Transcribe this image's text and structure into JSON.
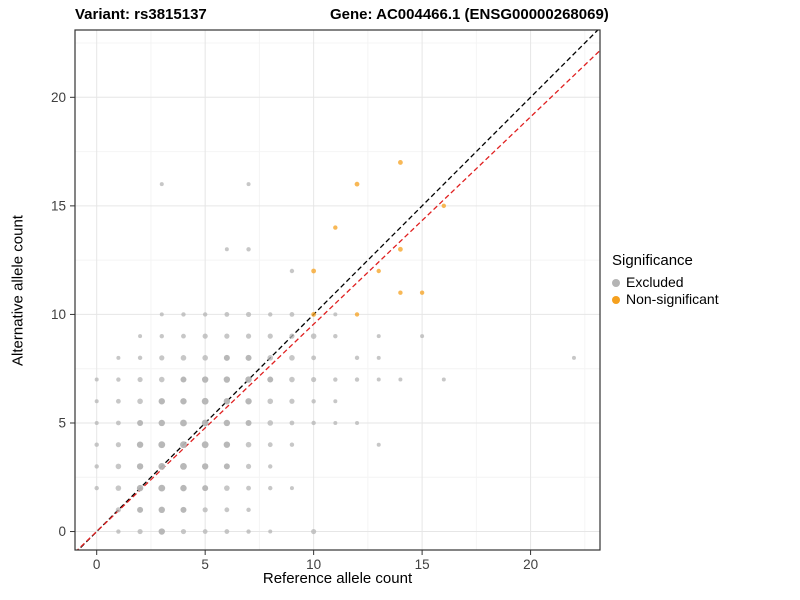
{
  "header": {
    "variant_title": "Variant: rs3815137",
    "gene_title": "Gene: AC004466.1 (ENSG00000268069)"
  },
  "legend": {
    "title": "Significance",
    "items": [
      {
        "label": "Excluded",
        "color": "#b4b4b4"
      },
      {
        "label": "Non-significant",
        "color": "#f5a01e"
      }
    ]
  },
  "chart_data": {
    "type": "scatter",
    "xlabel": "Reference allele count",
    "ylabel": "Alternative allele count",
    "xlim": [
      -1.0,
      23.2
    ],
    "ylim": [
      -0.85,
      23.1
    ],
    "xticks": [
      0,
      5,
      10,
      15,
      20
    ],
    "yticks": [
      0,
      5,
      10,
      15,
      20
    ],
    "grid": "major+minor",
    "grid_major_color": "#e6e6e6",
    "grid_minor_color": "#f4f4f4",
    "panel_border_color": "#333333",
    "lines": [
      {
        "name": "identity",
        "slope": 1.0,
        "intercept": 0,
        "color": "#000000",
        "dash": "5 3"
      },
      {
        "name": "fit",
        "slope": 0.955,
        "intercept": 0,
        "color": "#e02020",
        "dash": "5 3"
      }
    ],
    "series": [
      {
        "name": "Excluded",
        "color": "#b4b4b4",
        "points": [
          [
            1,
            0,
            2.2
          ],
          [
            2,
            0,
            2.6
          ],
          [
            3,
            0,
            3.2
          ],
          [
            4,
            0,
            2.6
          ],
          [
            5,
            0,
            2.4
          ],
          [
            6,
            0,
            2.4
          ],
          [
            7,
            0,
            2.2
          ],
          [
            8,
            0,
            2.0
          ],
          [
            10,
            0,
            2.6
          ],
          [
            1,
            1,
            2.6
          ],
          [
            2,
            1,
            3.0
          ],
          [
            3,
            1,
            3.2
          ],
          [
            4,
            1,
            3.0
          ],
          [
            5,
            1,
            2.6
          ],
          [
            6,
            1,
            2.4
          ],
          [
            7,
            1,
            2.2
          ],
          [
            0,
            2,
            2.2
          ],
          [
            1,
            2,
            2.8
          ],
          [
            2,
            2,
            3.2
          ],
          [
            3,
            2,
            3.4
          ],
          [
            4,
            2,
            3.2
          ],
          [
            5,
            2,
            3.0
          ],
          [
            6,
            2,
            2.8
          ],
          [
            7,
            2,
            2.4
          ],
          [
            8,
            2,
            2.2
          ],
          [
            9,
            2,
            2.0
          ],
          [
            0,
            3,
            2.2
          ],
          [
            1,
            3,
            2.8
          ],
          [
            2,
            3,
            3.2
          ],
          [
            3,
            3,
            3.4
          ],
          [
            4,
            3,
            3.4
          ],
          [
            5,
            3,
            3.2
          ],
          [
            6,
            3,
            3.0
          ],
          [
            7,
            3,
            2.6
          ],
          [
            8,
            3,
            2.2
          ],
          [
            0,
            4,
            2.2
          ],
          [
            1,
            4,
            2.6
          ],
          [
            2,
            4,
            3.2
          ],
          [
            3,
            4,
            3.4
          ],
          [
            4,
            4,
            3.4
          ],
          [
            5,
            4,
            3.4
          ],
          [
            6,
            4,
            3.2
          ],
          [
            7,
            4,
            2.8
          ],
          [
            8,
            4,
            2.4
          ],
          [
            9,
            4,
            2.2
          ],
          [
            13,
            4,
            2.0
          ],
          [
            0,
            5,
            2.0
          ],
          [
            1,
            5,
            2.4
          ],
          [
            2,
            5,
            3.0
          ],
          [
            3,
            5,
            3.2
          ],
          [
            4,
            5,
            3.4
          ],
          [
            5,
            5,
            3.4
          ],
          [
            6,
            5,
            3.2
          ],
          [
            7,
            5,
            3.0
          ],
          [
            8,
            5,
            2.8
          ],
          [
            9,
            5,
            2.4
          ],
          [
            10,
            5,
            2.2
          ],
          [
            11,
            5,
            2.0
          ],
          [
            12,
            5,
            2.0
          ],
          [
            0,
            6,
            2.0
          ],
          [
            1,
            6,
            2.4
          ],
          [
            2,
            6,
            2.8
          ],
          [
            3,
            6,
            3.2
          ],
          [
            4,
            6,
            3.2
          ],
          [
            5,
            6,
            3.4
          ],
          [
            6,
            6,
            3.2
          ],
          [
            7,
            6,
            3.2
          ],
          [
            8,
            6,
            2.8
          ],
          [
            9,
            6,
            2.6
          ],
          [
            10,
            6,
            2.2
          ],
          [
            11,
            6,
            2.0
          ],
          [
            0,
            7,
            2.0
          ],
          [
            1,
            7,
            2.2
          ],
          [
            2,
            7,
            2.6
          ],
          [
            3,
            7,
            2.8
          ],
          [
            4,
            7,
            3.0
          ],
          [
            5,
            7,
            3.2
          ],
          [
            6,
            7,
            3.2
          ],
          [
            7,
            7,
            3.2
          ],
          [
            8,
            7,
            3.0
          ],
          [
            9,
            7,
            2.8
          ],
          [
            10,
            7,
            2.6
          ],
          [
            11,
            7,
            2.2
          ],
          [
            12,
            7,
            2.2
          ],
          [
            13,
            7,
            2.0
          ],
          [
            14,
            7,
            2.0
          ],
          [
            16,
            7,
            2.0
          ],
          [
            1,
            8,
            2.0
          ],
          [
            2,
            8,
            2.2
          ],
          [
            3,
            8,
            2.6
          ],
          [
            4,
            8,
            2.8
          ],
          [
            5,
            8,
            2.8
          ],
          [
            6,
            8,
            3.0
          ],
          [
            7,
            8,
            3.0
          ],
          [
            8,
            8,
            2.8
          ],
          [
            9,
            8,
            2.8
          ],
          [
            10,
            8,
            2.4
          ],
          [
            12,
            8,
            2.2
          ],
          [
            13,
            8,
            2.0
          ],
          [
            22,
            8,
            2.0
          ],
          [
            2,
            9,
            2.0
          ],
          [
            3,
            9,
            2.2
          ],
          [
            4,
            9,
            2.4
          ],
          [
            5,
            9,
            2.6
          ],
          [
            6,
            9,
            2.6
          ],
          [
            7,
            9,
            2.6
          ],
          [
            8,
            9,
            2.6
          ],
          [
            9,
            9,
            2.6
          ],
          [
            10,
            9,
            2.8
          ],
          [
            11,
            9,
            2.2
          ],
          [
            13,
            9,
            2.0
          ],
          [
            15,
            9,
            2.0
          ],
          [
            3,
            10,
            2.0
          ],
          [
            4,
            10,
            2.2
          ],
          [
            5,
            10,
            2.2
          ],
          [
            6,
            10,
            2.4
          ],
          [
            7,
            10,
            2.6
          ],
          [
            8,
            10,
            2.2
          ],
          [
            9,
            10,
            2.4
          ],
          [
            11,
            10,
            2.0
          ],
          [
            9,
            12,
            2.2
          ],
          [
            6,
            13,
            2.0
          ],
          [
            7,
            13,
            2.2
          ],
          [
            3,
            16,
            2.0
          ],
          [
            7,
            16,
            2.0
          ]
        ]
      },
      {
        "name": "Non-significant",
        "color": "#f5a01e",
        "points": [
          [
            10,
            10,
            2.4
          ],
          [
            10,
            12,
            2.4
          ],
          [
            11,
            14,
            2.2
          ],
          [
            12,
            10,
            2.2
          ],
          [
            12,
            16,
            2.4
          ],
          [
            13,
            12,
            2.2
          ],
          [
            14,
            11,
            2.2
          ],
          [
            14,
            13,
            2.4
          ],
          [
            14,
            17,
            2.4
          ],
          [
            15,
            11,
            2.2
          ],
          [
            16,
            15,
            2.2
          ]
        ]
      }
    ]
  }
}
